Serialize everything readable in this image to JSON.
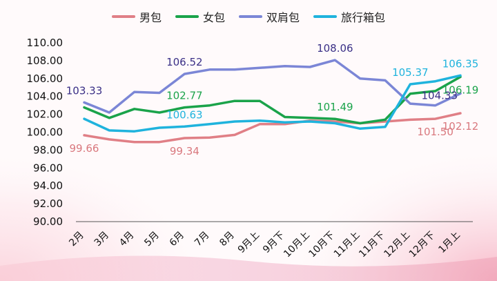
{
  "chart_data": {
    "type": "line",
    "categories": [
      "2月",
      "3月",
      "4月",
      "5月",
      "6月",
      "7月",
      "8月",
      "9月上",
      "9月下",
      "10月上",
      "10月下",
      "11月上",
      "11月下",
      "12月上",
      "12月下",
      "1月上"
    ],
    "ylim": [
      90,
      110
    ],
    "yticks": [
      "90.00",
      "92.00",
      "94.00",
      "96.00",
      "98.00",
      "100.00",
      "102.00",
      "104.00",
      "106.00",
      "108.00",
      "110.00"
    ],
    "grid": false,
    "legend_position": "top-center",
    "series": [
      {
        "name": "男包",
        "color": "#e07f86",
        "values": [
          99.66,
          99.2,
          98.9,
          98.9,
          99.34,
          99.4,
          99.7,
          100.9,
          100.9,
          101.3,
          101.2,
          101.0,
          101.2,
          101.4,
          101.5,
          102.12
        ],
        "labels": [
          {
            "index": 0,
            "text": "99.66",
            "pos": "below",
            "color": "#d9787e"
          },
          {
            "index": 4,
            "text": "99.34",
            "pos": "below",
            "color": "#d9787e"
          },
          {
            "index": 14,
            "text": "101.50",
            "pos": "below",
            "color": "#d9787e"
          },
          {
            "index": 15,
            "text": "102.12",
            "pos": "below",
            "color": "#d9787e"
          }
        ]
      },
      {
        "name": "女包",
        "color": "#1aa34a",
        "values": [
          102.77,
          101.6,
          102.6,
          102.2,
          102.77,
          103.0,
          103.5,
          103.5,
          101.7,
          101.6,
          101.49,
          101.0,
          101.4,
          104.3,
          104.6,
          106.19
        ],
        "labels": [
          {
            "index": 4,
            "text": "102.77",
            "pos": "above",
            "color": "#1aa34a"
          },
          {
            "index": 10,
            "text": "101.49",
            "pos": "above",
            "color": "#1aa34a"
          },
          {
            "index": 15,
            "text": "106.19",
            "pos": "below",
            "color": "#1aa34a"
          }
        ]
      },
      {
        "name": "双肩包",
        "color": "#7b86d6",
        "values": [
          103.33,
          102.2,
          104.5,
          104.4,
          106.52,
          107.0,
          107.0,
          107.2,
          107.4,
          107.3,
          108.06,
          106.0,
          105.8,
          103.2,
          103.0,
          104.33
        ],
        "labels": [
          {
            "index": 0,
            "text": "103.33",
            "pos": "above",
            "color": "#3a2f86"
          },
          {
            "index": 4,
            "text": "106.52",
            "pos": "above",
            "color": "#3a2f86"
          },
          {
            "index": 10,
            "text": "108.06",
            "pos": "above",
            "color": "#3a2f86"
          },
          {
            "index": 15,
            "text": "104.33",
            "pos": "below-left",
            "color": "#3a2f86"
          }
        ]
      },
      {
        "name": "旅行箱包",
        "color": "#1fb3dd",
        "values": [
          101.5,
          100.2,
          100.1,
          100.5,
          100.63,
          100.9,
          101.2,
          101.3,
          101.1,
          101.2,
          101.0,
          100.4,
          100.6,
          105.37,
          105.7,
          106.35
        ],
        "labels": [
          {
            "index": 4,
            "text": "100.63",
            "pos": "above",
            "color": "#1fb3dd"
          },
          {
            "index": 13,
            "text": "105.37",
            "pos": "above",
            "color": "#1fb3dd"
          },
          {
            "index": 15,
            "text": "106.35",
            "pos": "above",
            "color": "#1fb3dd"
          }
        ]
      }
    ]
  }
}
